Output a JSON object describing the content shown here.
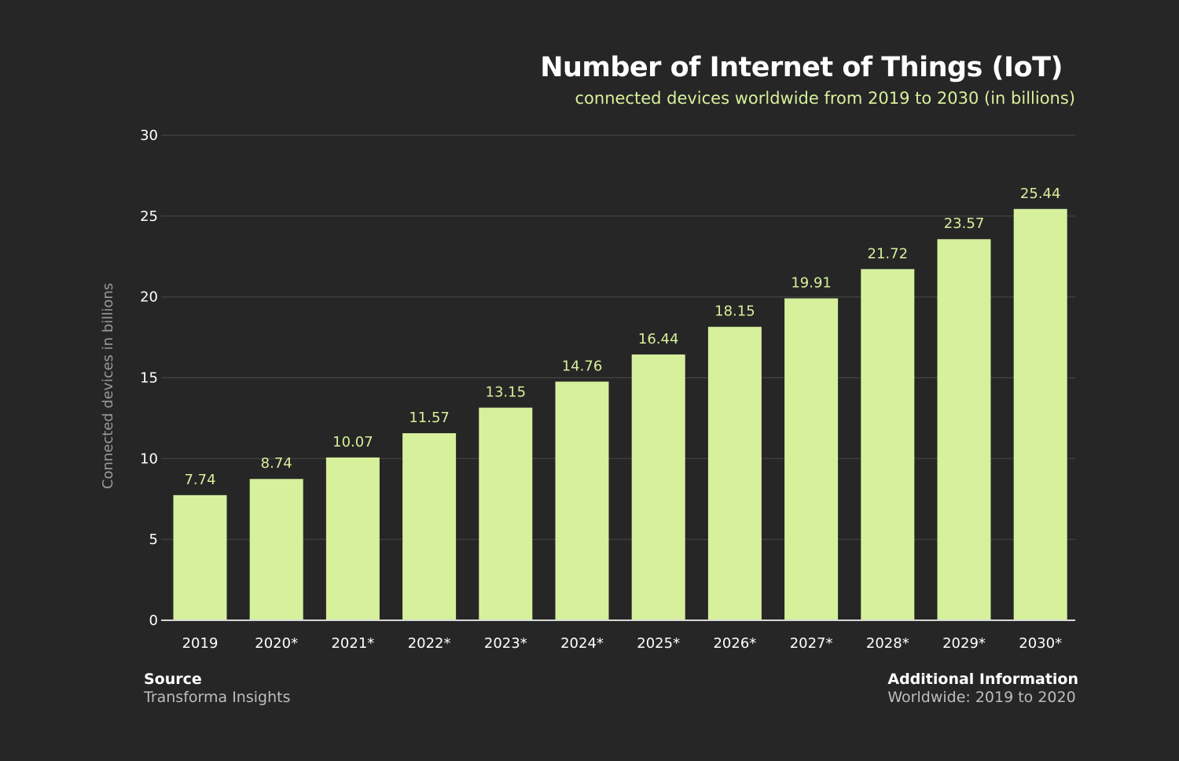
{
  "chart_data": {
    "type": "bar",
    "title": "Number of Internet of Things (IoT)",
    "subtitle": "connected devices worldwide from 2019 to 2030 (in billions)",
    "xlabel": "",
    "ylabel": "Connected devices in billions",
    "categories": [
      "2019",
      "2020*",
      "2021*",
      "2022*",
      "2023*",
      "2024*",
      "2025*",
      "2026*",
      "2027*",
      "2028*",
      "2029*",
      "2030*"
    ],
    "values": [
      7.74,
      8.74,
      10.07,
      11.57,
      13.15,
      14.76,
      16.44,
      18.15,
      19.91,
      21.72,
      23.57,
      25.44
    ],
    "value_labels": [
      "7.74",
      "8.74",
      "10.07",
      "11.57",
      "13.15",
      "14.76",
      "16.44",
      "18.15",
      "19.91",
      "21.72",
      "23.57",
      "25.44"
    ],
    "ylim": [
      0,
      30
    ],
    "yticks": [
      "0",
      "5",
      "10",
      "15",
      "20",
      "25",
      "30"
    ],
    "grid": true,
    "legend": "none",
    "colors": {
      "background": "#262626",
      "bar": "#d6f09c",
      "grid": "#444444",
      "axis": "#d8d8d8"
    }
  },
  "footer": {
    "source_heading": "Source",
    "source_text": "Transforma Insights",
    "info_heading": "Additional Information",
    "info_text": "Worldwide: 2019 to 2020"
  }
}
